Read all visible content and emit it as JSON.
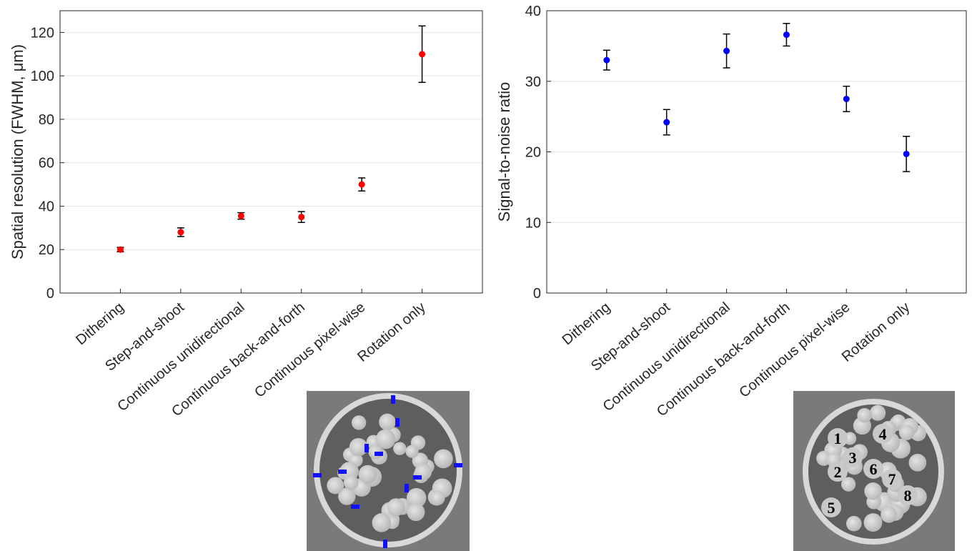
{
  "chart_data": [
    {
      "type": "errorbar",
      "ylabel": "Spatial resolution (FWHM, μm)",
      "categories": [
        "Dithering",
        "Step-and-shoot",
        "Continuous unidirectional",
        "Continuous back-and-forth",
        "Continuous pixel-wise",
        "Rotation only"
      ],
      "values": [
        20,
        28,
        35.5,
        35,
        50,
        110
      ],
      "errors": [
        1,
        2,
        1.5,
        2.5,
        3,
        13
      ],
      "color": "#ff0000",
      "ylim": [
        0,
        130
      ],
      "yticks": [
        0,
        20,
        40,
        60,
        80,
        100,
        120
      ],
      "grid": true
    },
    {
      "type": "errorbar",
      "ylabel": "Signal-to-noise ratio",
      "categories": [
        "Dithering",
        "Step-and-shoot",
        "Continuous unidirectional",
        "Continuous back-and-forth",
        "Continuous pixel-wise",
        "Rotation only"
      ],
      "values": [
        33,
        24.2,
        34.3,
        36.6,
        27.5,
        19.7
      ],
      "errors": [
        1.4,
        1.8,
        2.4,
        1.6,
        1.8,
        2.5
      ],
      "color": "#0000ff",
      "ylim": [
        0,
        40
      ],
      "yticks": [
        0,
        10,
        20,
        30,
        40
      ],
      "grid": true
    }
  ],
  "inset_labels": [
    "1",
    "2",
    "3",
    "4",
    "5",
    "6",
    "7",
    "8"
  ]
}
